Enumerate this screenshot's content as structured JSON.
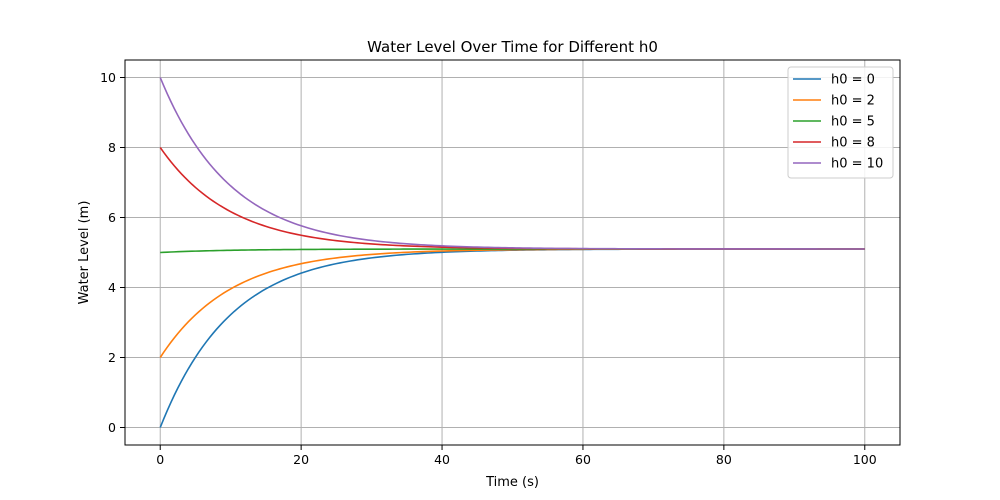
{
  "chart_data": {
    "type": "line",
    "title": "Water Level Over Time for Different h0",
    "xlabel": "Time (s)",
    "ylabel": "Water Level (m)",
    "xlim": [
      -5,
      105
    ],
    "ylim": [
      -0.5,
      10.5
    ],
    "xticks": [
      0,
      20,
      40,
      60,
      80,
      100
    ],
    "yticks": [
      0,
      2,
      4,
      6,
      8,
      10
    ],
    "grid": true,
    "legend_position": "top-right",
    "model": {
      "equilibrium": 5.1,
      "rate": 0.1
    },
    "x_range": [
      0,
      100
    ],
    "series": [
      {
        "name": "h0 = 0",
        "h0": 0,
        "color": "#1f77b4"
      },
      {
        "name": "h0 = 2",
        "h0": 2,
        "color": "#ff7f0e"
      },
      {
        "name": "h0 = 5",
        "h0": 5,
        "color": "#2ca02c"
      },
      {
        "name": "h0 = 8",
        "h0": 8,
        "color": "#d62728"
      },
      {
        "name": "h0 = 10",
        "h0": 10,
        "color": "#9467bd"
      }
    ]
  }
}
